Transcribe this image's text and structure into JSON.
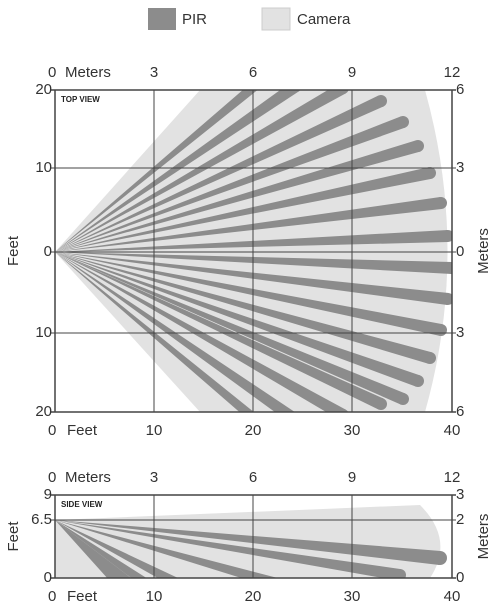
{
  "legend": [
    {
      "label": "PIR"
    },
    {
      "label": "Camera"
    }
  ],
  "top_view": {
    "label": "TOP VIEW",
    "top_axis": {
      "title": "Meters",
      "ticks": [
        "0",
        "3",
        "6",
        "9",
        "12"
      ]
    },
    "bottom_axis": {
      "title": "Feet",
      "ticks": [
        "0",
        "10",
        "20",
        "30",
        "40"
      ]
    },
    "left_axis": {
      "title": "Feet",
      "ticks": [
        "20",
        "10",
        "0",
        "10",
        "20"
      ]
    },
    "right_axis": {
      "title": "Meters",
      "ticks": [
        "6",
        "3",
        "0",
        "3",
        "6"
      ]
    }
  },
  "side_view": {
    "label": "SIDE VIEW",
    "top_axis": {
      "title": "Meters",
      "ticks": [
        "0",
        "3",
        "6",
        "9",
        "12"
      ]
    },
    "bottom_axis": {
      "title": "Feet",
      "ticks": [
        "0",
        "10",
        "20",
        "30",
        "40"
      ]
    },
    "left_axis": {
      "title": "Feet",
      "ticks": [
        "9",
        "6.5",
        "0"
      ]
    },
    "right_axis": {
      "title": "Meters",
      "ticks": [
        "3",
        "2",
        "0"
      ]
    }
  }
}
